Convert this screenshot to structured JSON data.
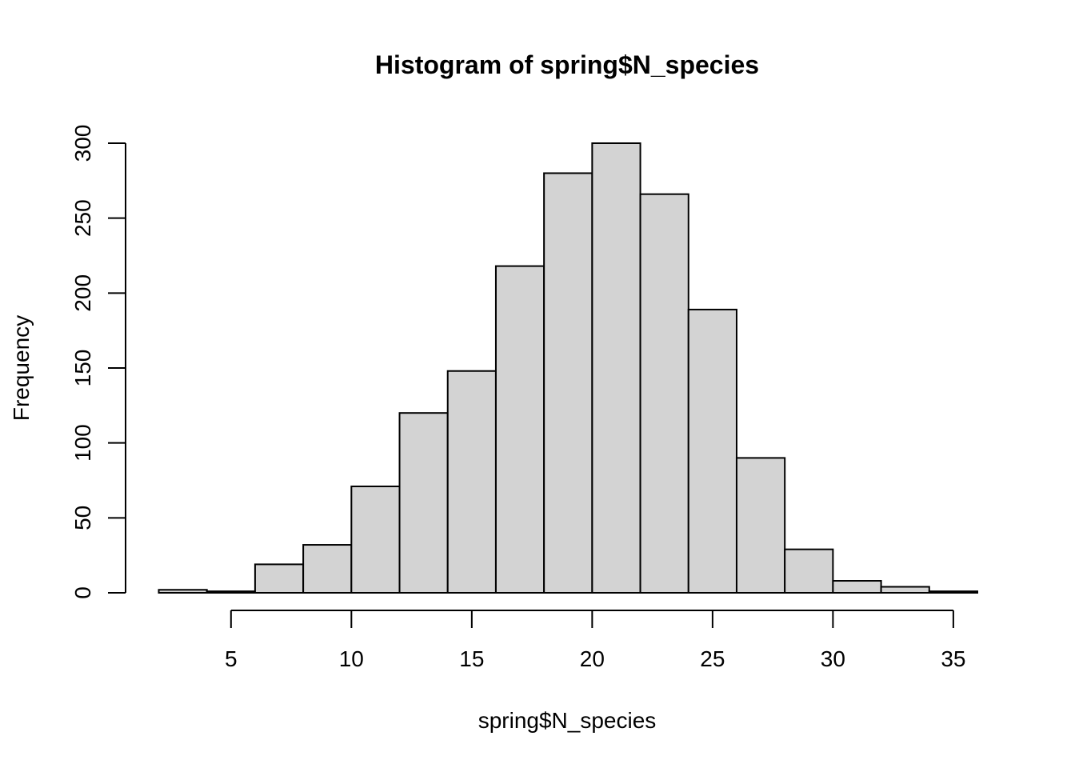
{
  "chart_data": {
    "type": "bar",
    "title": "Histogram of spring$N_species",
    "xlabel": "spring$N_species",
    "ylabel": "Frequency",
    "bin_edges": [
      2,
      4,
      6,
      8,
      10,
      12,
      14,
      16,
      18,
      20,
      22,
      24,
      26,
      28,
      30,
      32,
      34,
      36
    ],
    "values": [
      2,
      1,
      19,
      32,
      71,
      120,
      148,
      218,
      280,
      300,
      266,
      189,
      90,
      29,
      8,
      4,
      1
    ],
    "xlim": [
      2,
      36
    ],
    "ylim": [
      0,
      300
    ],
    "x_ticks": [
      5,
      10,
      15,
      20,
      25,
      30,
      35
    ],
    "y_ticks": [
      0,
      50,
      100,
      150,
      200,
      250,
      300
    ],
    "bar_color": "#d3d3d3",
    "border_color": "#000000",
    "grid": false
  }
}
